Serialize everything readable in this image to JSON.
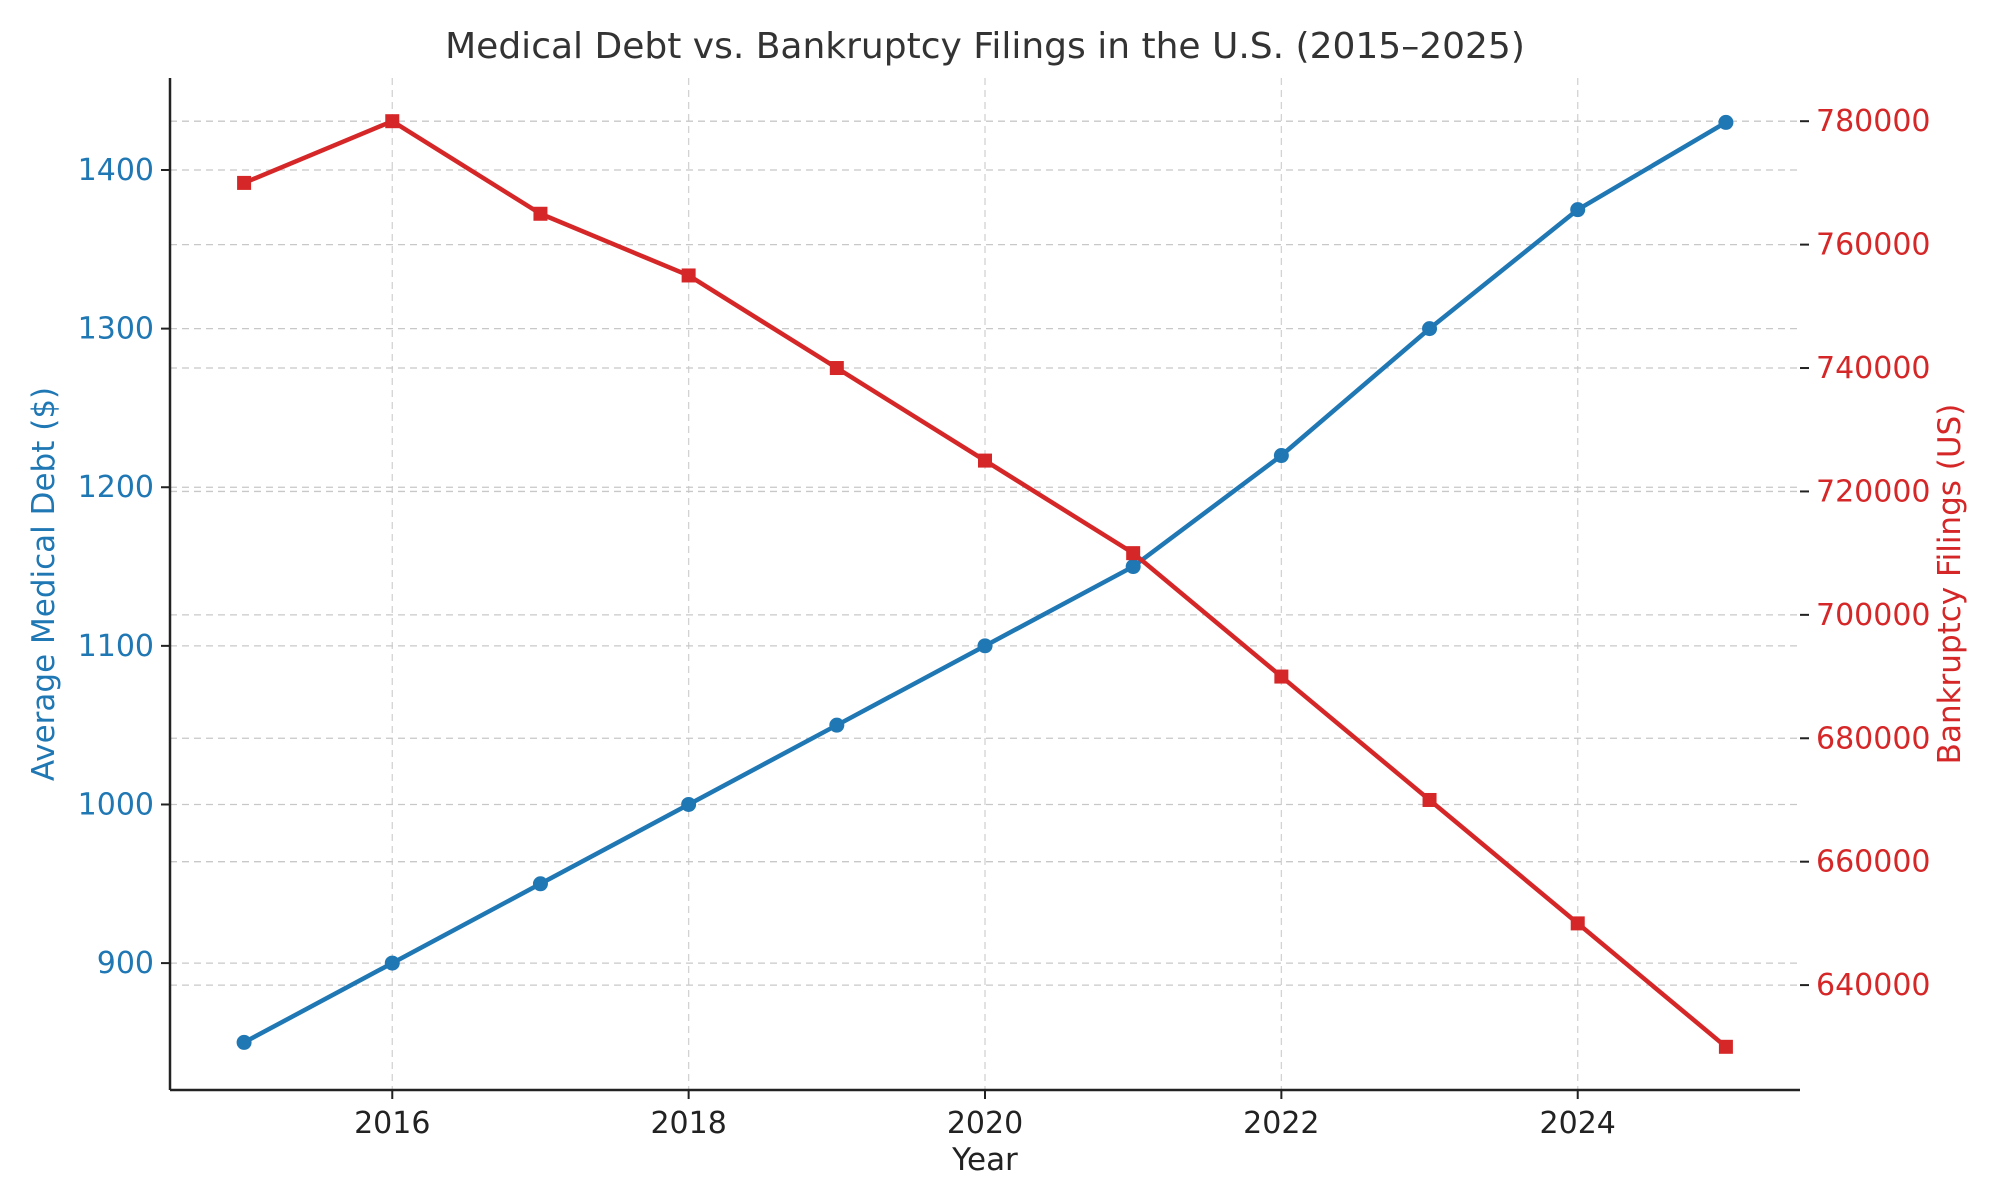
{
  "chart_data": {
    "type": "line",
    "title": "Medical Debt vs. Bankruptcy Filings in the U.S. (2015–2025)",
    "xlabel": "Year",
    "ylabel_left": "Average Medical Debt ($)",
    "ylabel_right": "Bankruptcy Filings (US)",
    "x": [
      2015,
      2016,
      2017,
      2018,
      2019,
      2020,
      2021,
      2022,
      2023,
      2024,
      2025
    ],
    "x_ticks": [
      "2016",
      "2018",
      "2020",
      "2022",
      "2024"
    ],
    "xlim": [
      2014.5,
      2025.5
    ],
    "y_left_ticks": [
      "900",
      "1000",
      "1100",
      "1200",
      "1300",
      "1400"
    ],
    "ylim_left": [
      820,
      1458
    ],
    "y_right_ticks": [
      "640000",
      "660000",
      "680000",
      "700000",
      "720000",
      "740000",
      "760000",
      "780000"
    ],
    "ylim_right": [
      623000,
      787000
    ],
    "grid": true,
    "series": [
      {
        "axis": "left",
        "color": "#1f77b4",
        "marker": "circle",
        "values": [
          850,
          900,
          950,
          1000,
          1050,
          1100,
          1150,
          1220,
          1300,
          1375,
          1430
        ]
      },
      {
        "axis": "right",
        "color": "#d62728",
        "marker": "square",
        "values": [
          770000,
          780000,
          765000,
          755000,
          740000,
          725000,
          710000,
          690000,
          670000,
          650000,
          630000
        ]
      }
    ]
  }
}
